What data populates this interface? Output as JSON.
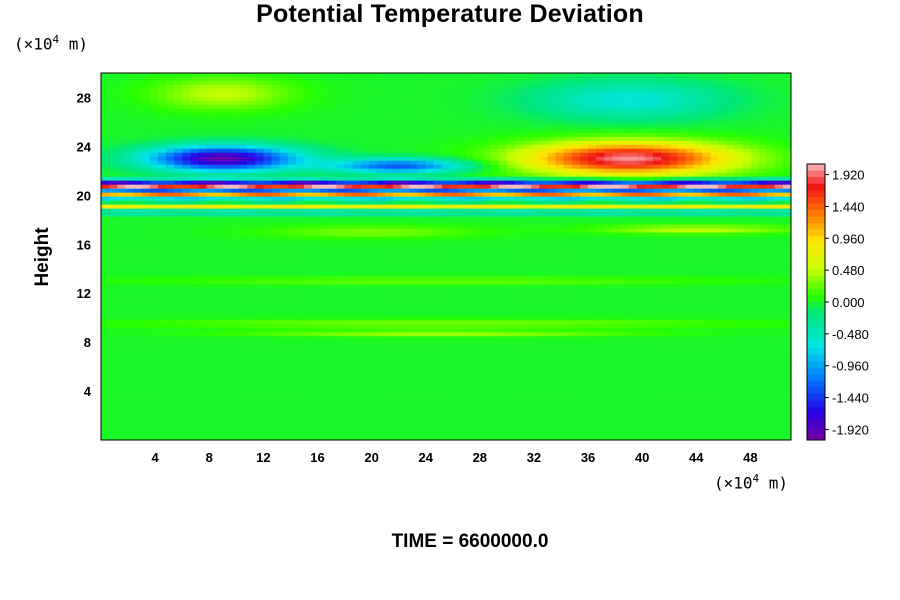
{
  "chart_data": {
    "type": "heatmap",
    "title": "Potential Temperature Deviation",
    "ylabel": "Height",
    "x_unit": {
      "prefix": "(×10",
      "exp": "4",
      "suffix": " m)"
    },
    "y_unit": {
      "prefix": "(×10",
      "exp": "4",
      "suffix": " m)"
    },
    "xlim": [
      0,
      51
    ],
    "ylim": [
      0,
      30
    ],
    "x_ticks": [
      "4",
      "8",
      "12",
      "16",
      "20",
      "24",
      "28",
      "32",
      "36",
      "40",
      "44",
      "48"
    ],
    "y_ticks": [
      "4",
      "8",
      "12",
      "16",
      "20",
      "24",
      "28"
    ],
    "colorbar": {
      "range": [
        -2.08,
        2.08
      ],
      "labels": [
        "1.920",
        "1.440",
        "0.960",
        "0.480",
        "0.000",
        "-0.480",
        "-0.960",
        "-1.440",
        "-1.920"
      ]
    },
    "features": [
      {
        "x": 9,
        "y": 23.0,
        "value": -2.0,
        "sx": 5.5,
        "sy": 1.0
      },
      {
        "x": 22,
        "y": 22.4,
        "value": -1.3,
        "sx": 5.0,
        "sy": 0.6
      },
      {
        "x": 39,
        "y": 23.0,
        "value": 2.0,
        "sx": 7.5,
        "sy": 1.3
      },
      {
        "x": 9,
        "y": 28.3,
        "value": 0.5,
        "sx": 5.0,
        "sy": 1.3
      },
      {
        "x": 39,
        "y": 27.8,
        "value": -0.6,
        "sx": 7.0,
        "sy": 1.6
      },
      {
        "x": 44,
        "y": 17.2,
        "value": 0.5,
        "sx": 7.0,
        "sy": 0.35
      },
      {
        "x": 20,
        "y": 17.0,
        "value": 0.3,
        "sx": 8.0,
        "sy": 0.5
      },
      {
        "x": 25,
        "y": 9.5,
        "value": 0.3,
        "sx": 22.0,
        "sy": 0.35
      },
      {
        "x": 25,
        "y": 13.0,
        "value": 0.25,
        "sx": 22.0,
        "sy": 0.3
      },
      {
        "x": 25,
        "y": 8.7,
        "value": 0.4,
        "sx": 14.0,
        "sy": 0.25
      }
    ],
    "bands": [
      {
        "y": 21.1,
        "value": -1.9
      },
      {
        "y": 20.7,
        "value": 1.9
      },
      {
        "y": 20.3,
        "value": -1.6
      },
      {
        "y": 20.0,
        "value": 1.7
      },
      {
        "y": 19.6,
        "value": -1.4
      },
      {
        "y": 19.2,
        "value": 1.1
      },
      {
        "y": 18.6,
        "value": -0.6
      }
    ]
  },
  "time_label": "TIME = 6600000.0"
}
